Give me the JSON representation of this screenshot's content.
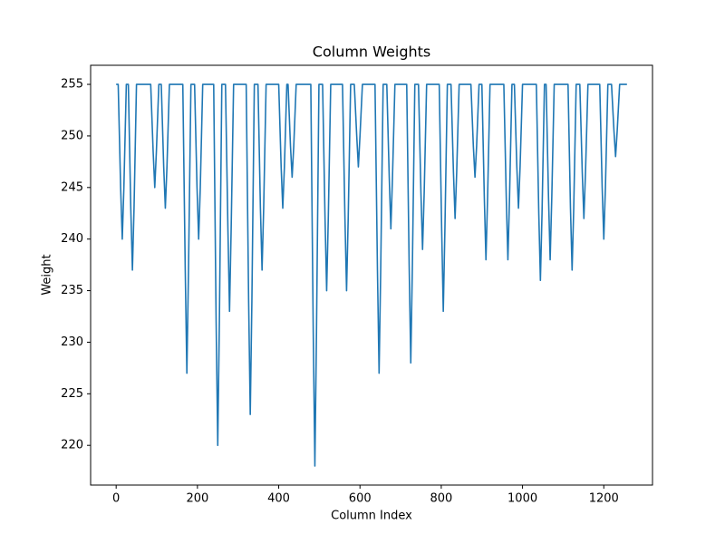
{
  "chart_data": {
    "type": "line",
    "title": "Column Weights",
    "x_label": "Column Index",
    "y_label": "Weight",
    "color": "#1f77b4",
    "x": [
      0,
      5,
      11,
      15,
      19,
      25,
      30,
      36,
      40,
      44,
      50,
      85,
      91,
      95,
      99,
      105,
      111,
      117,
      121,
      125,
      131,
      164,
      170,
      174,
      178,
      184,
      193,
      199,
      203,
      207,
      213,
      240,
      246,
      250,
      254,
      260,
      269,
      275,
      279,
      283,
      289,
      320,
      326,
      330,
      334,
      340,
      349,
      355,
      359,
      363,
      369,
      400,
      406,
      410,
      414,
      420,
      423,
      429,
      433,
      437,
      443,
      479,
      485,
      489,
      493,
      499,
      508,
      514,
      518,
      522,
      528,
      557,
      563,
      567,
      571,
      577,
      586,
      592,
      596,
      600,
      606,
      637,
      643,
      647,
      651,
      657,
      666,
      672,
      676,
      680,
      686,
      715,
      721,
      725,
      729,
      735,
      744,
      750,
      754,
      758,
      764,
      795,
      801,
      805,
      809,
      815,
      824,
      830,
      834,
      838,
      844,
      873,
      879,
      883,
      887,
      893,
      900,
      906,
      910,
      914,
      920,
      954,
      960,
      964,
      968,
      974,
      980,
      986,
      990,
      994,
      1000,
      1034,
      1040,
      1044,
      1048,
      1054,
      1058,
      1064,
      1068,
      1072,
      1078,
      1112,
      1118,
      1122,
      1126,
      1132,
      1141,
      1147,
      1151,
      1155,
      1161,
      1190,
      1196,
      1200,
      1204,
      1210,
      1219,
      1225,
      1229,
      1233,
      1239,
      1257
    ],
    "values": [
      255,
      255,
      245,
      240,
      245,
      255,
      255,
      243,
      237,
      243,
      255,
      255,
      248.5,
      245,
      248.5,
      255,
      255,
      247,
      243,
      247,
      255,
      255,
      237,
      227,
      237,
      255,
      255,
      245,
      240,
      245,
      255,
      255,
      232,
      220,
      232,
      255,
      255,
      241,
      233,
      241,
      255,
      255,
      234,
      223,
      234,
      255,
      255,
      243,
      237,
      243,
      255,
      255,
      247,
      243,
      247,
      255,
      255,
      249,
      246,
      249,
      255,
      255,
      231,
      218,
      231,
      255,
      255,
      242,
      235,
      242,
      255,
      255,
      242,
      235,
      242,
      255,
      255,
      250,
      247,
      250,
      255,
      255,
      237,
      227,
      237,
      255,
      255,
      246,
      241,
      246,
      255,
      255,
      237.5,
      228,
      237.5,
      255,
      255,
      244.5,
      239,
      244.5,
      255,
      255,
      241,
      233,
      241,
      255,
      255,
      246.5,
      242,
      246.5,
      255,
      255,
      249,
      246,
      249,
      255,
      255,
      244,
      238,
      244,
      255,
      255,
      244,
      238,
      244,
      255,
      255,
      247,
      243,
      247,
      255,
      255,
      242.5,
      236,
      242.5,
      255,
      255,
      244,
      238,
      244,
      255,
      255,
      243,
      237,
      243,
      255,
      255,
      246.5,
      242,
      246.5,
      255,
      255,
      245,
      240,
      245,
      255,
      255,
      250.5,
      248,
      250.5,
      255,
      255
    ],
    "xlim": [
      -62.85,
      1319.85
    ],
    "ylim": [
      216.15,
      256.85
    ],
    "xticks": [
      0,
      200,
      400,
      600,
      800,
      1000,
      1200
    ],
    "yticks": [
      220,
      225,
      230,
      235,
      240,
      245,
      250,
      255
    ]
  }
}
